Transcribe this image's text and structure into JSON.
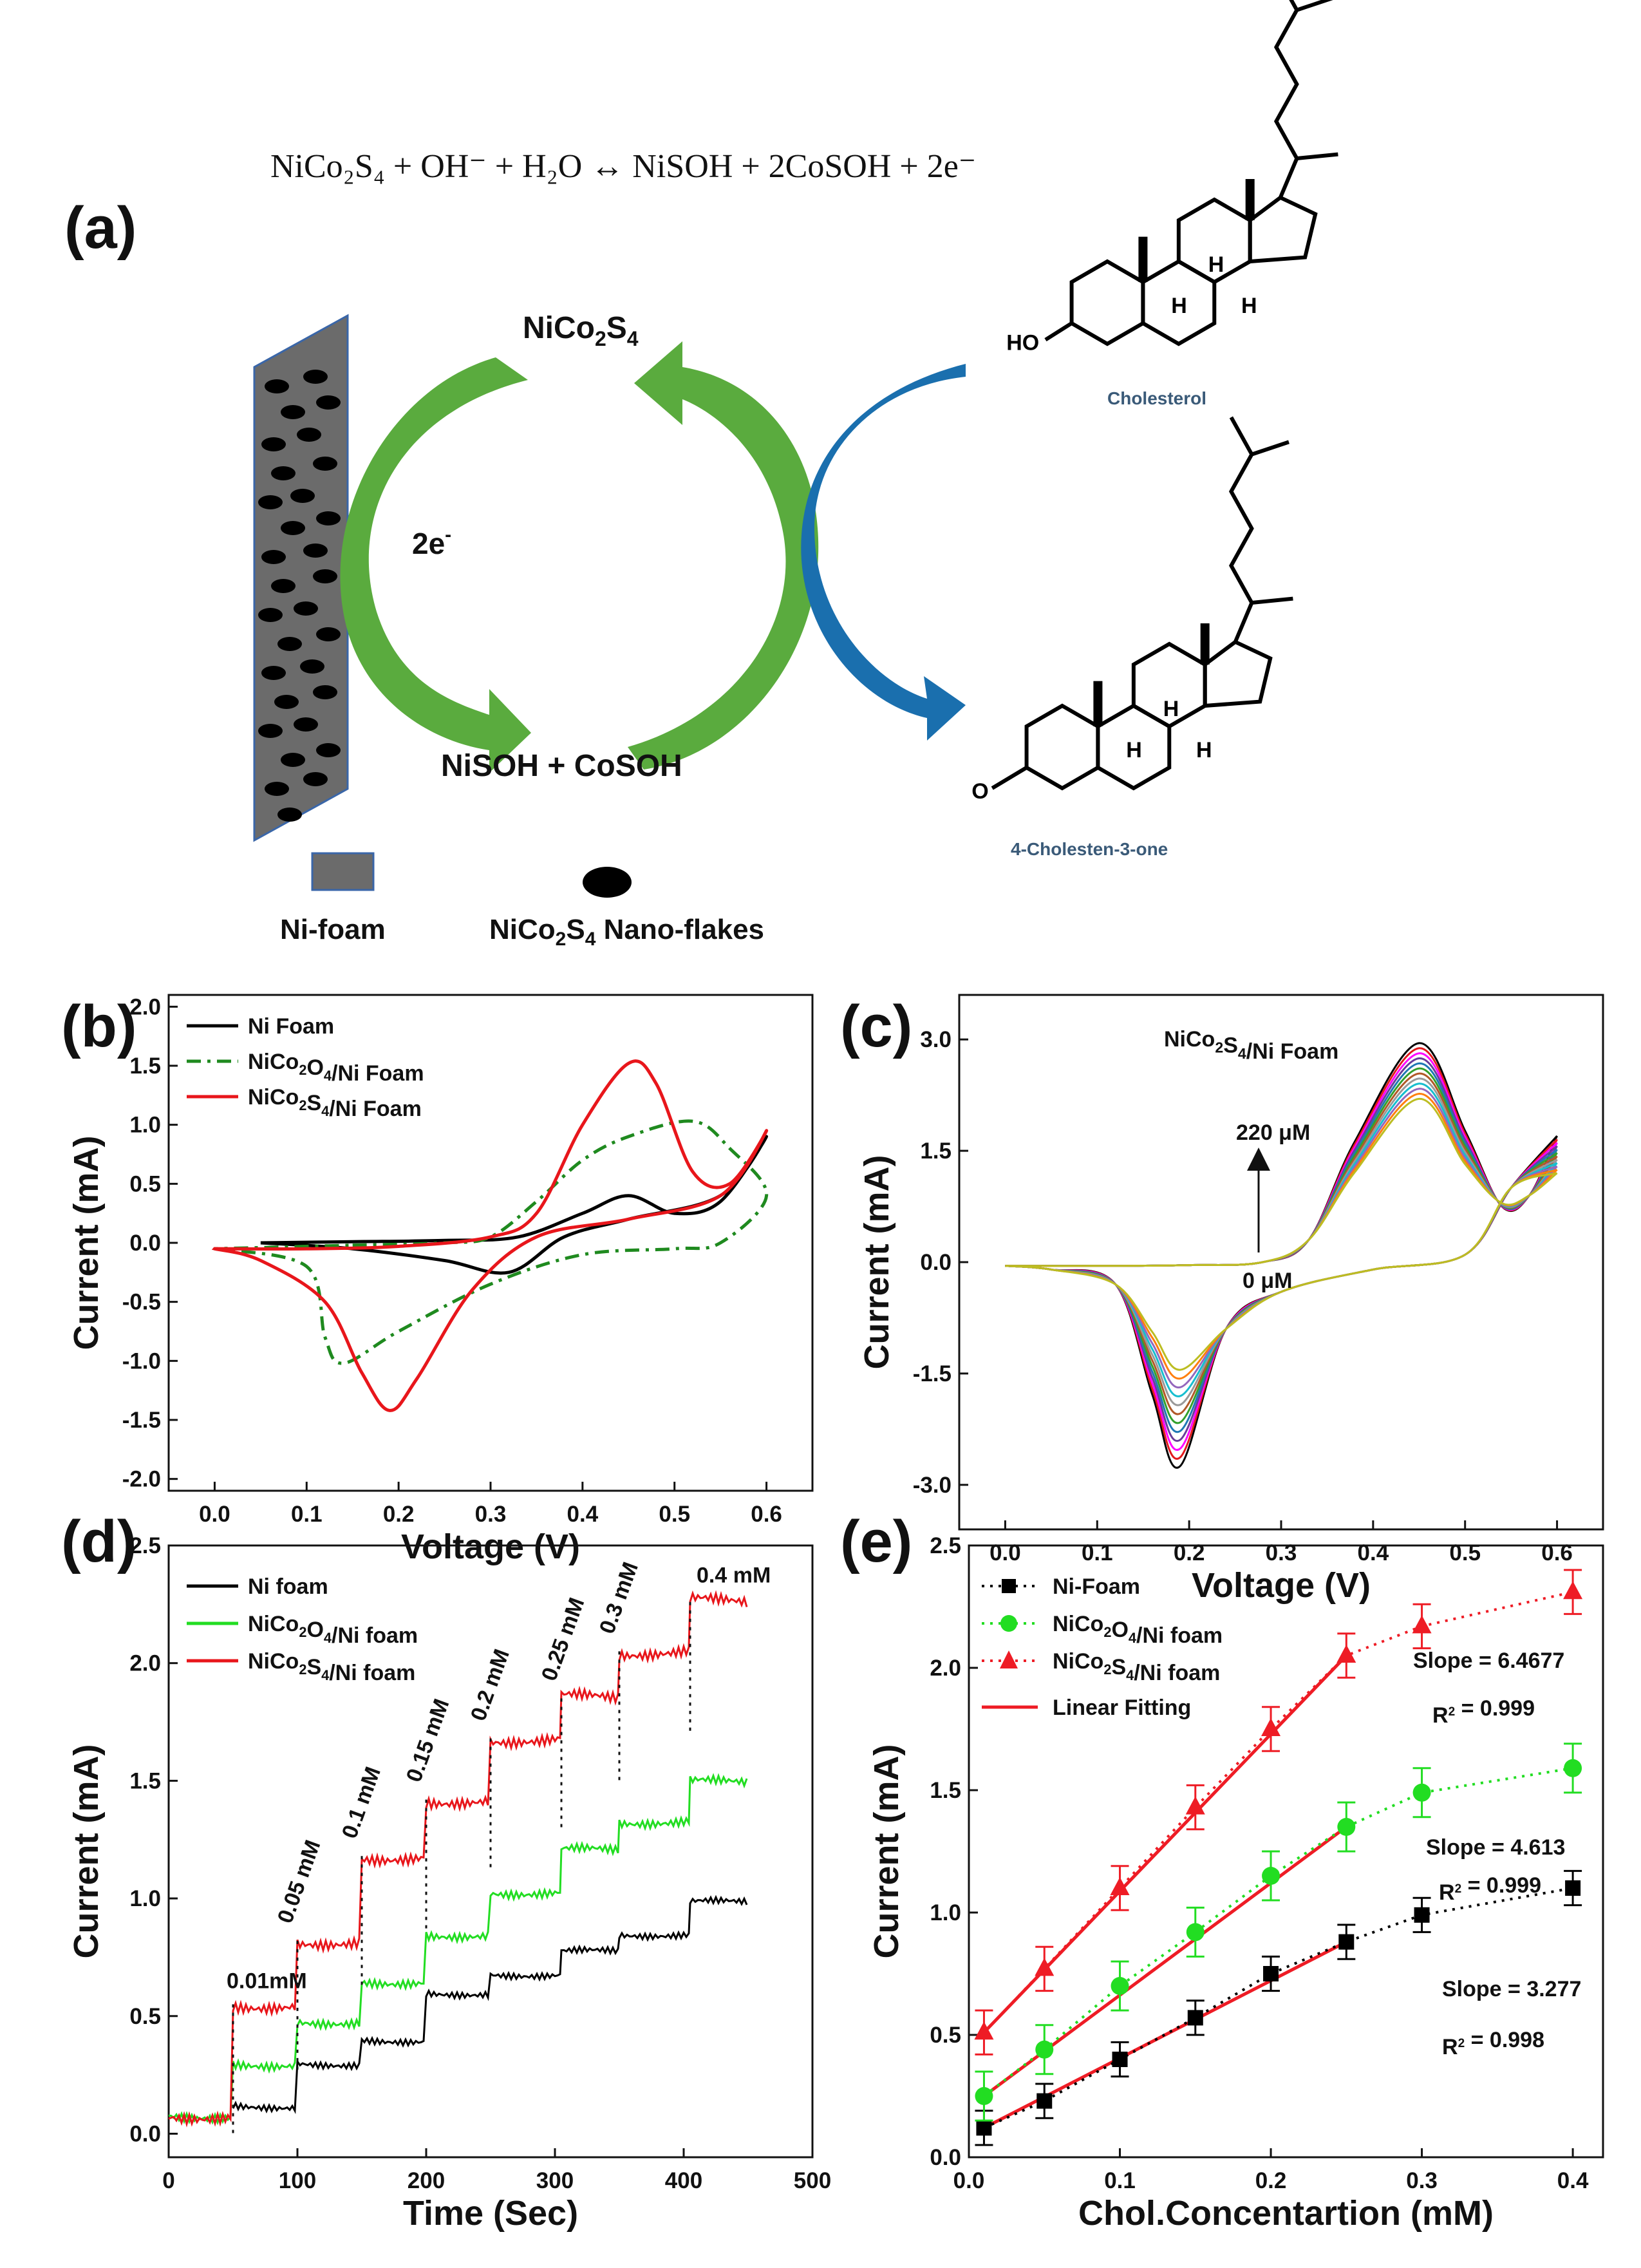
{
  "panel_a": {
    "letter": "(a)",
    "reaction": "NiCo₂S₄ + OH⁻ + H₂O ↔ NiSOH + 2CoSOH + 2e⁻",
    "top_label": "NiCo2S4",
    "bottom_label": "NiSOH + CoSOH",
    "electrons": "2e-",
    "molecule_top": "Cholesterol",
    "molecule_bottom": "4-Cholesten-3-one",
    "legend_foam": "Ni-foam",
    "legend_flakes": "NiCo2S4 Nano-flakes",
    "atom_HO": "HO",
    "atom_O": "O",
    "atom_H": "H",
    "colors": {
      "green_arrow": "#5aab3e",
      "blue_arrow": "#1a6fae",
      "foam": "#6b6b6b"
    }
  },
  "chart_data": [
    {
      "panel": "(b)",
      "type": "line",
      "xlabel": "Voltage (V)",
      "ylabel": "Current (mA)",
      "xlim": [
        -0.05,
        0.65
      ],
      "ylim": [
        -2.1,
        2.1
      ],
      "xticks": [
        "0.0",
        "0.1",
        "0.2",
        "0.3",
        "0.4",
        "0.5",
        "0.6"
      ],
      "yticks": [
        "-2.0",
        "-1.5",
        "-1.0",
        "-0.5",
        "0.0",
        "0.5",
        "1.0",
        "1.5",
        "2.0"
      ],
      "legend": "top-left",
      "series": [
        {
          "name": "Ni Foam",
          "color": "#000000",
          "dash": "solid",
          "x": [
            0.05,
            0.15,
            0.25,
            0.33,
            0.4,
            0.45,
            0.5,
            0.55,
            0.6,
            0.55,
            0.45,
            0.38,
            0.32,
            0.25,
            0.15,
            0.05
          ],
          "y": [
            0.0,
            0.01,
            0.02,
            0.05,
            0.25,
            0.4,
            0.25,
            0.35,
            0.9,
            0.4,
            0.2,
            0.05,
            -0.25,
            -0.15,
            -0.05,
            0.0
          ]
        },
        {
          "name": "NiCo2O4/Ni Foam",
          "color": "#1f8a1f",
          "dash": "dash-dot",
          "x": [
            0.15,
            0.25,
            0.3,
            0.35,
            0.4,
            0.45,
            0.52,
            0.56,
            0.6,
            0.55,
            0.5,
            0.4,
            0.3,
            0.2,
            0.14,
            0.12,
            0.1,
            0.0
          ],
          "y": [
            -0.02,
            0.0,
            0.05,
            0.35,
            0.7,
            0.9,
            1.03,
            0.8,
            0.4,
            0.0,
            -0.05,
            -0.1,
            -0.35,
            -0.75,
            -1.02,
            -0.8,
            -0.2,
            -0.05
          ]
        },
        {
          "name": "NiCo2S4/Ni Foam",
          "color": "#e8161b",
          "dash": "solid",
          "x": [
            0.0,
            0.1,
            0.2,
            0.3,
            0.35,
            0.4,
            0.45,
            0.48,
            0.52,
            0.56,
            0.6,
            0.55,
            0.45,
            0.35,
            0.28,
            0.22,
            0.19,
            0.16,
            0.12,
            0.05,
            0.0
          ],
          "y": [
            -0.05,
            -0.05,
            -0.03,
            0.05,
            0.25,
            1.0,
            1.52,
            1.35,
            0.6,
            0.5,
            0.95,
            0.4,
            0.2,
            0.05,
            -0.4,
            -1.15,
            -1.42,
            -1.1,
            -0.5,
            -0.15,
            -0.05
          ]
        }
      ]
    },
    {
      "panel": "(c)",
      "type": "line",
      "title": "NiCo2S4/Ni Foam",
      "xlabel": "Voltage (V)",
      "ylabel": "Current (mA)",
      "xlim": [
        -0.05,
        0.65
      ],
      "ylim": [
        -3.6,
        3.6
      ],
      "xticks": [
        "0.0",
        "0.1",
        "0.2",
        "0.3",
        "0.4",
        "0.5",
        "0.6"
      ],
      "yticks": [
        "-3.0",
        "-1.5",
        "0.0",
        "1.5",
        "3.0"
      ],
      "annotation_top": "220 μM",
      "annotation_bottom": "0 μM",
      "curve_count": 12,
      "anodic_peak_range": [
        2.2,
        2.95
      ],
      "cathodic_peak_range": [
        -1.45,
        -2.75
      ],
      "colors": [
        "#000000",
        "#e31a1c",
        "#ff00ff",
        "#6a3d9a",
        "#1f78b4",
        "#33a02c",
        "#b15928",
        "#999999",
        "#17becf",
        "#9467bd",
        "#ff7f0e",
        "#bcbd22"
      ]
    },
    {
      "panel": "(d)",
      "type": "line",
      "xlabel": "Time (Sec)",
      "ylabel": "Current (mA)",
      "xlim": [
        0,
        500
      ],
      "ylim": [
        -0.1,
        2.5
      ],
      "xticks": [
        "0",
        "100",
        "200",
        "300",
        "400",
        "500"
      ],
      "yticks": [
        "0.0",
        "0.5",
        "1.0",
        "1.5",
        "2.0",
        "2.5"
      ],
      "legend": "top-left",
      "step_times": [
        50,
        100,
        150,
        200,
        250,
        305,
        350,
        405
      ],
      "step_labels": [
        "0.01mM",
        "0.05 mM",
        "0.1 mM",
        "0.15 mM",
        "0.2 mM",
        "0.25 mM",
        "0.3 mM",
        "0.4 mM"
      ],
      "series": [
        {
          "name": "Ni foam",
          "color": "#000000",
          "levels": [
            0.05,
            0.12,
            0.3,
            0.4,
            0.6,
            0.68,
            0.77,
            0.85,
            0.98
          ],
          "start": 60
        },
        {
          "name": "NiCo2O4/Ni foam",
          "color": "#22dd22",
          "levels": [
            0.08,
            0.3,
            0.48,
            0.65,
            0.85,
            1.03,
            1.2,
            1.33,
            1.49
          ],
          "start": 0
        },
        {
          "name": "NiCo2S4/Ni foam",
          "color": "#e8161b",
          "levels": [
            0.08,
            0.55,
            0.82,
            1.18,
            1.42,
            1.68,
            1.85,
            2.05,
            2.26
          ],
          "start": 0
        }
      ]
    },
    {
      "panel": "(e)",
      "type": "scatter",
      "xlabel": "Chol.Concentartion (mM)",
      "ylabel": "Current (mA)",
      "xlim": [
        0,
        0.42
      ],
      "ylim": [
        0,
        2.5
      ],
      "xticks": [
        "0.0",
        "0.1",
        "0.2",
        "0.3",
        "0.4"
      ],
      "yticks": [
        "0.0",
        "0.5",
        "1.0",
        "1.5",
        "2.0",
        "2.5"
      ],
      "legend": "top-left",
      "x": [
        0.01,
        0.05,
        0.1,
        0.15,
        0.2,
        0.25,
        0.3,
        0.4
      ],
      "series": [
        {
          "name": "Ni-Foam",
          "color": "#000000",
          "marker": "square",
          "y": [
            0.12,
            0.23,
            0.4,
            0.57,
            0.75,
            0.88,
            0.99,
            1.1
          ],
          "err": 0.07
        },
        {
          "name": "NiCo2O4/Ni foam",
          "color": "#22dd22",
          "marker": "circle",
          "y": [
            0.25,
            0.44,
            0.7,
            0.92,
            1.15,
            1.35,
            1.49,
            1.59
          ],
          "err": 0.1
        },
        {
          "name": "NiCo2S4/Ni foam",
          "color": "#ee1c25",
          "marker": "triangle",
          "y": [
            0.51,
            0.77,
            1.1,
            1.43,
            1.75,
            2.05,
            2.17,
            2.31
          ],
          "err": 0.09
        }
      ],
      "fit_label": "Linear Fitting",
      "fit_color": "#ee1c25",
      "fits": [
        {
          "x": [
            0.01,
            0.25
          ],
          "y": [
            0.12,
            0.88
          ]
        },
        {
          "x": [
            0.01,
            0.25
          ],
          "y": [
            0.25,
            1.35
          ]
        },
        {
          "x": [
            0.01,
            0.25
          ],
          "y": [
            0.51,
            2.05
          ]
        }
      ],
      "annotations": [
        {
          "slope": "Slope = 6.4677",
          "r2": "R2 = 0.999",
          "color": "#ee1c25"
        },
        {
          "slope": "Slope = 4.613",
          "r2": "R2 = 0.999",
          "color": "#22dd22"
        },
        {
          "slope": "Slope = 3.277",
          "r2": "R2 = 0.998",
          "color": "#000000"
        }
      ]
    }
  ]
}
